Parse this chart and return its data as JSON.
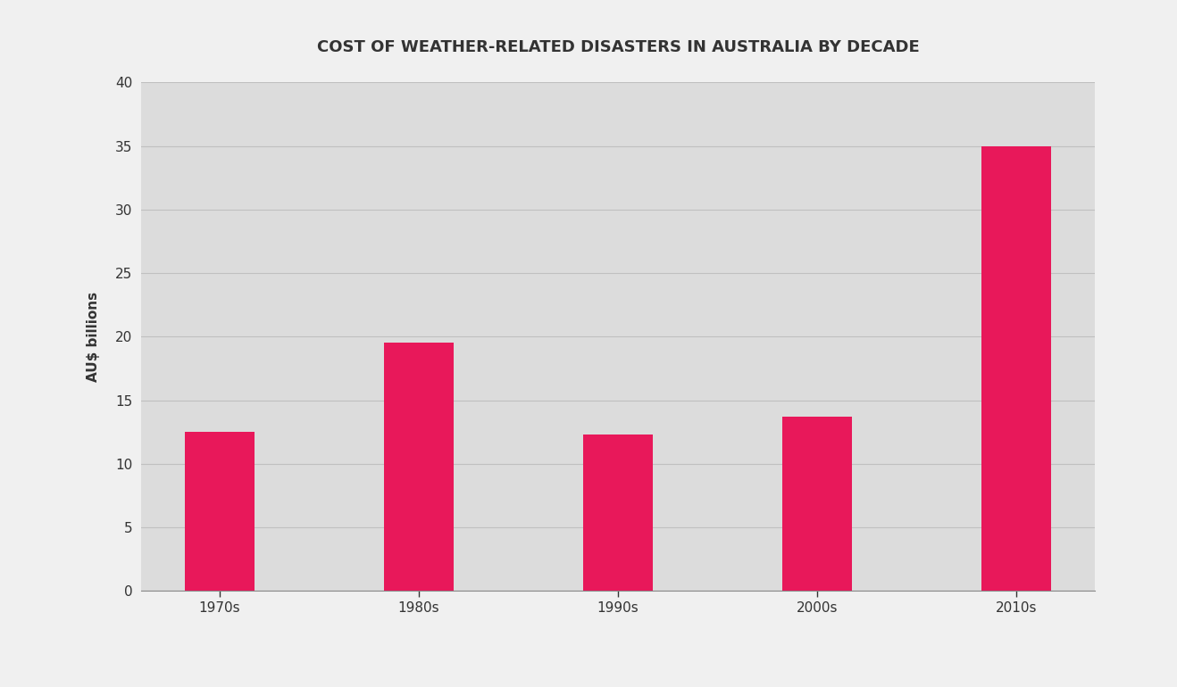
{
  "title": "COST OF WEATHER-RELATED DISASTERS IN AUSTRALIA BY DECADE",
  "categories": [
    "1970s",
    "1980s",
    "1990s",
    "2000s",
    "2010s"
  ],
  "values": [
    12.5,
    19.5,
    12.3,
    13.7,
    35.0
  ],
  "bar_color": "#E8185A",
  "ylabel": "AU$ billions",
  "ylim": [
    0,
    40
  ],
  "yticks": [
    0,
    5,
    10,
    15,
    20,
    25,
    30,
    35,
    40
  ],
  "plot_bg_color": "#DCDCDC",
  "fig_bg_color": "#F0F0F0",
  "title_fontsize": 13,
  "axis_fontsize": 11,
  "tick_fontsize": 11,
  "bar_width": 0.35,
  "grid_color": "#C0C0C0",
  "spine_color": "#888888",
  "text_color": "#333333"
}
